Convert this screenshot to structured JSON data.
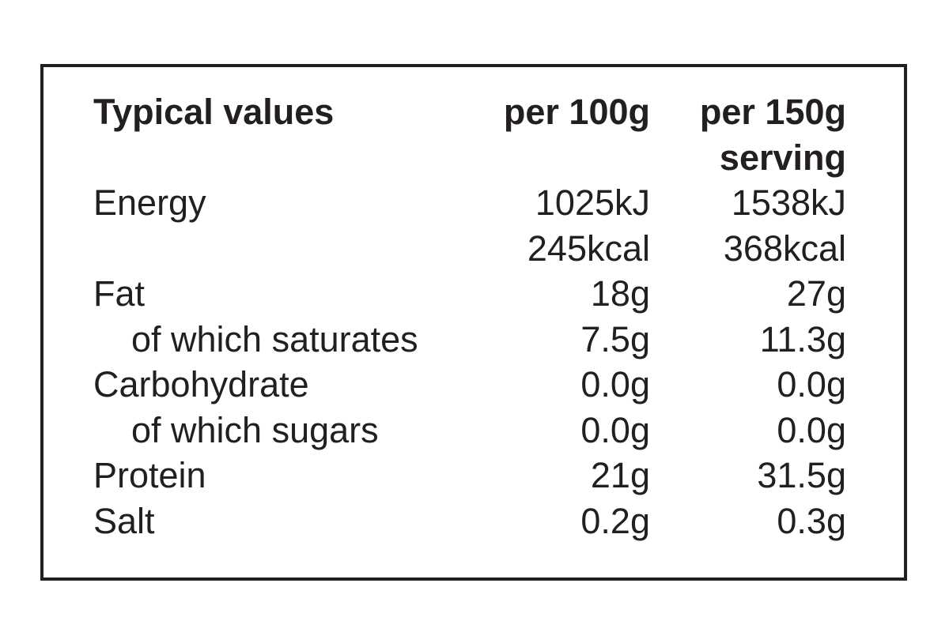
{
  "label": {
    "header": {
      "col1": "Typical values",
      "col2": "per 100g",
      "col3_line1": "per 150g",
      "col3_line2": "serving"
    },
    "rows": [
      {
        "name": "Energy",
        "per100": "1025kJ",
        "perServing": "1538kJ",
        "indent": false
      },
      {
        "name": "",
        "per100": "245kcal",
        "perServing": "368kcal",
        "indent": false
      },
      {
        "name": "Fat",
        "per100": "18g",
        "perServing": "27g",
        "indent": false
      },
      {
        "name": "of which saturates",
        "per100": "7.5g",
        "perServing": "11.3g",
        "indent": true
      },
      {
        "name": "Carbohydrate",
        "per100": "0.0g",
        "perServing": "0.0g",
        "indent": false
      },
      {
        "name": "of which sugars",
        "per100": "0.0g",
        "perServing": "0.0g",
        "indent": true
      },
      {
        "name": "Protein",
        "per100": "21g",
        "perServing": "31.5g",
        "indent": false
      },
      {
        "name": "Salt",
        "per100": "0.2g",
        "perServing": "0.3g",
        "indent": false
      }
    ],
    "colors": {
      "text": "#231f20",
      "border": "#231f20",
      "background": "#ffffff"
    }
  }
}
